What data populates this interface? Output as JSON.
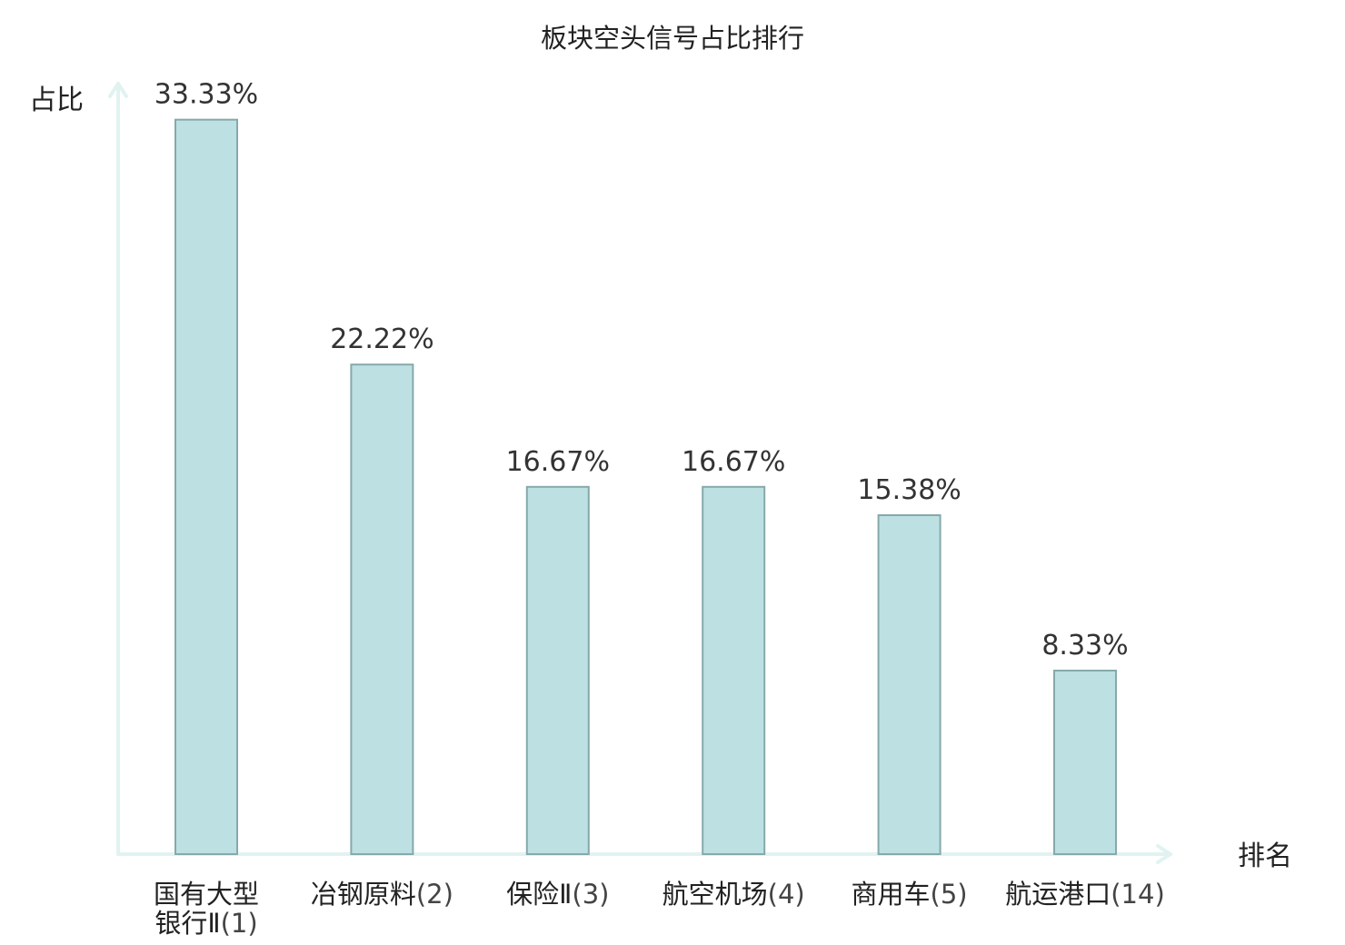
{
  "chart_data": {
    "type": "bar",
    "title": "板块空头信号占比排行",
    "xlabel": "排名",
    "ylabel": "占比",
    "ylim": [
      0,
      35
    ],
    "grid": false,
    "categories": [
      {
        "name_lines": [
          "国有大型",
          "银行Ⅱ"
        ],
        "rank": "(1)",
        "highlight": false
      },
      {
        "name_lines": [
          "冶钢原料"
        ],
        "rank": "(2)",
        "highlight": false
      },
      {
        "name_lines": [
          "保险Ⅱ"
        ],
        "rank": "(3)",
        "highlight": false
      },
      {
        "name_lines": [
          "航空机场"
        ],
        "rank": "(4)",
        "highlight": false
      },
      {
        "name_lines": [
          "商用车"
        ],
        "rank": "(5)",
        "highlight": false
      },
      {
        "name_lines": [
          "航运港口"
        ],
        "rank": "(14)",
        "highlight": true
      }
    ],
    "values": [
      33.33,
      22.22,
      16.67,
      16.67,
      15.38,
      8.33
    ],
    "value_labels": [
      "33.33%",
      "22.22%",
      "16.67%",
      "16.67%",
      "15.38%",
      "8.33%"
    ]
  },
  "colors": {
    "bar_fill": "#bde0e3",
    "bar_stroke": "#86a9ab",
    "axis": "#e1f3f1",
    "highlight_text": "#e8202a"
  }
}
